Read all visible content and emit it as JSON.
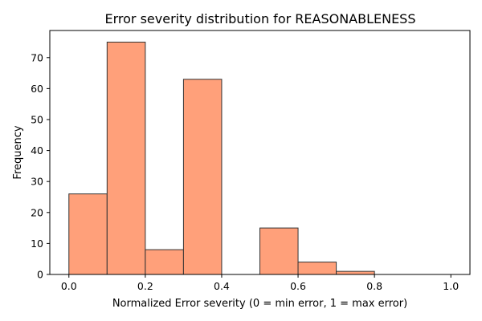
{
  "chart_data": {
    "type": "bar",
    "title": "Error severity distribution for REASONABLENESS",
    "xlabel": "Normalized Error severity (0 = min error, 1 = max error)",
    "ylabel": "Frequency",
    "bin_edges": [
      0.0,
      0.1,
      0.2,
      0.3,
      0.4,
      0.5,
      0.6,
      0.7,
      0.8,
      0.9,
      1.0
    ],
    "values": [
      26,
      75,
      8,
      63,
      0,
      15,
      4,
      1,
      0,
      0
    ],
    "xlim": [
      -0.05,
      1.05
    ],
    "ylim": [
      0,
      78.75
    ],
    "x_ticks": [
      0.0,
      0.2,
      0.4,
      0.6,
      0.8,
      1.0
    ],
    "x_tick_labels": [
      "0.0",
      "0.2",
      "0.4",
      "0.6",
      "0.8",
      "1.0"
    ],
    "y_ticks": [
      0,
      10,
      20,
      30,
      40,
      50,
      60,
      70
    ],
    "y_tick_labels": [
      "0",
      "10",
      "20",
      "30",
      "40",
      "50",
      "60",
      "70"
    ],
    "grid": false,
    "colors": {
      "bar_fill": "#FFA07A",
      "bar_edge": "#333333",
      "axis": "#000000"
    }
  }
}
